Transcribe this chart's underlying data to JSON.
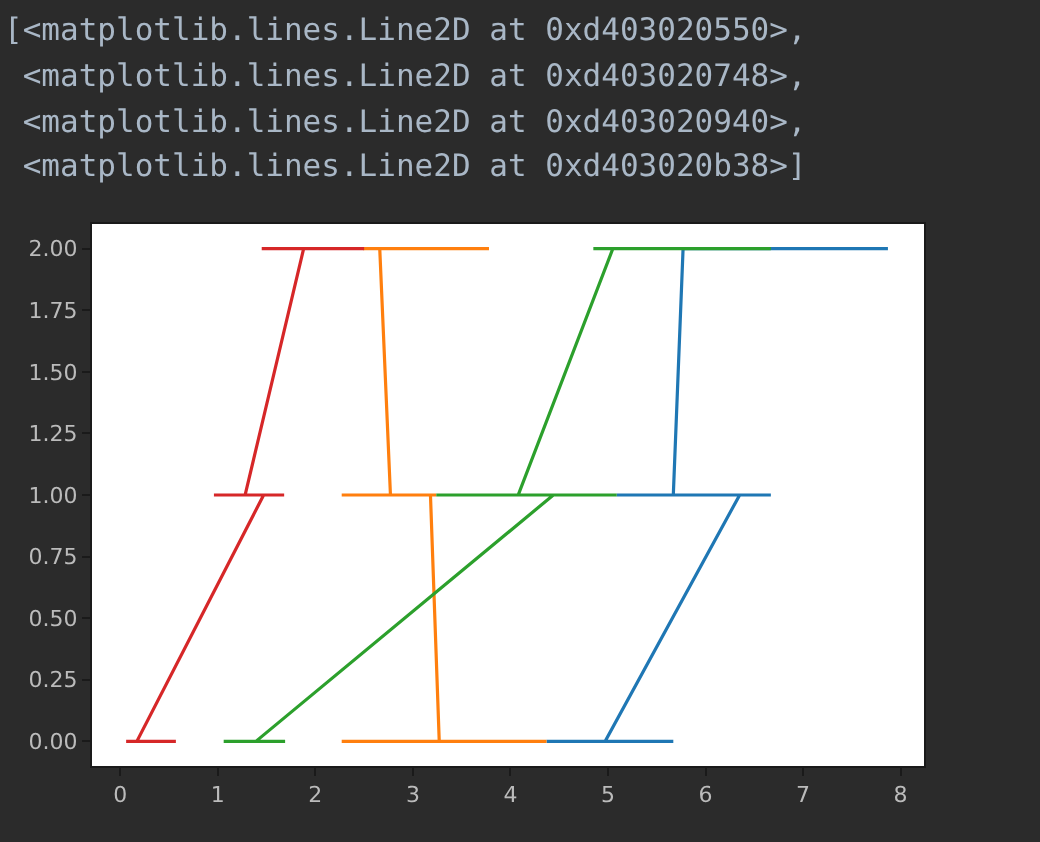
{
  "chart_data": {
    "type": "line",
    "annotations": [
      "[<matplotlib.lines.Line2D at 0xd403020550>,",
      " <matplotlib.lines.Line2D at 0xd403020748>,",
      " <matplotlib.lines.Line2D at 0xd403020940>,",
      " <matplotlib.lines.Line2D at 0xd403020b38>]"
    ],
    "series": [
      {
        "color": "#1f77b4",
        "x": [
          4.37,
          5.67,
          4.97,
          6.35,
          5.09,
          6.67,
          5.67,
          5.77,
          6.67,
          7.87
        ],
        "values": [
          0,
          0,
          0,
          1,
          1,
          1,
          1,
          2,
          2,
          2
        ]
      },
      {
        "color": "#ff7f0e",
        "x": [
          2.27,
          4.37,
          3.27,
          3.18,
          2.27,
          3.24,
          2.77,
          2.66,
          2.49,
          3.78
        ],
        "values": [
          0,
          0,
          0,
          1,
          1,
          1,
          1,
          2,
          2,
          2
        ]
      },
      {
        "color": "#2ca02c",
        "x": [
          1.06,
          1.69,
          1.39,
          4.44,
          3.24,
          5.09,
          4.08,
          5.05,
          4.85,
          6.67
        ],
        "values": [
          0,
          0,
          0,
          1,
          1,
          1,
          1,
          2,
          2,
          2
        ]
      },
      {
        "color": "#d62728",
        "x": [
          0.06,
          0.57,
          0.17,
          1.47,
          0.96,
          1.68,
          1.28,
          1.88,
          1.45,
          2.5
        ],
        "values": [
          0,
          0,
          0,
          1,
          1,
          1,
          1,
          2,
          2,
          2
        ]
      }
    ],
    "xlim": [
      -0.29,
      8.24
    ],
    "xticks": [
      0,
      1,
      2,
      3,
      4,
      5,
      6,
      7,
      8
    ],
    "ylim": [
      -0.1,
      2.1
    ],
    "yticks": [
      {
        "value": 0,
        "label": "0.00"
      },
      {
        "value": 0.25,
        "label": "0.25"
      },
      {
        "value": 0.5,
        "label": "0.50"
      },
      {
        "value": 0.75,
        "label": "0.75"
      },
      {
        "value": 1,
        "label": "1.00"
      },
      {
        "value": 1.25,
        "label": "1.25"
      },
      {
        "value": 1.5,
        "label": "1.50"
      },
      {
        "value": 1.75,
        "label": "1.75"
      },
      {
        "value": 2,
        "label": "2.00"
      }
    ]
  }
}
